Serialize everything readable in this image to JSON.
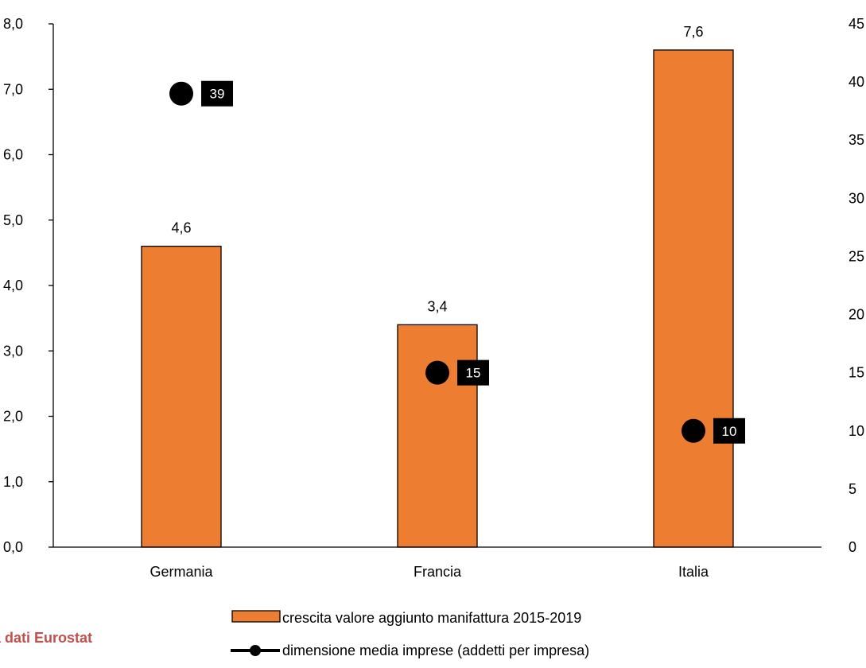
{
  "colors": {
    "bar": "#ED7D31",
    "bar_stroke": "#000000",
    "dot": "#000000",
    "source": "#C0504D"
  },
  "source_text": "a dati Eurostat",
  "chart_data": {
    "type": "bar",
    "categories": [
      "Germania",
      "Francia",
      "Italia"
    ],
    "series": [
      {
        "name": "crescita valore aggiunto manifattura 2015-2019",
        "type": "bar",
        "axis": "left",
        "values": [
          4.6,
          3.4,
          7.6
        ],
        "labels": [
          "4,6",
          "3,4",
          "7,6"
        ]
      },
      {
        "name": "dimensione media imprese (addetti per impresa)",
        "type": "scatter",
        "axis": "right",
        "values": [
          39,
          15,
          10
        ],
        "labels": [
          "39",
          "15",
          "10"
        ]
      }
    ],
    "y_left": {
      "ylim": [
        0,
        8
      ],
      "ticks": [
        "0,0",
        "1,0",
        "2,0",
        "3,0",
        "4,0",
        "5,0",
        "6,0",
        "7,0",
        "8,0"
      ]
    },
    "y_right": {
      "ylim": [
        0,
        45
      ],
      "ticks": [
        "0",
        "5",
        "10",
        "15",
        "20",
        "25",
        "30",
        "35",
        "40",
        "45"
      ]
    },
    "title": "",
    "xlabel": "",
    "ylabel": "",
    "grid": false,
    "legend_position": "bottom"
  }
}
